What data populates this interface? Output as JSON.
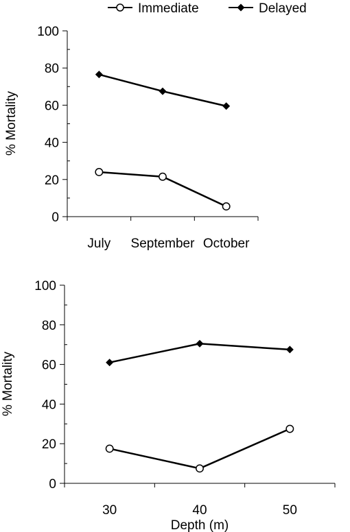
{
  "legend": {
    "items": [
      {
        "label": "Immediate",
        "marker": "open-circle-icon"
      },
      {
        "label": "Delayed",
        "marker": "filled-diamond-icon"
      }
    ]
  },
  "chart_data": [
    {
      "type": "line",
      "title": "",
      "xlabel": "",
      "ylabel": "% Mortality",
      "categories": [
        "July",
        "September",
        "October"
      ],
      "ylim": [
        0,
        100
      ],
      "yticks": [
        0,
        20,
        40,
        60,
        80,
        100
      ],
      "grid": false,
      "legend_position": "top",
      "series": [
        {
          "name": "Immediate",
          "marker": "open-circle",
          "values": [
            24,
            21.5,
            5.5
          ]
        },
        {
          "name": "Delayed",
          "marker": "filled-diamond",
          "values": [
            76.5,
            67.5,
            59.5
          ]
        }
      ]
    },
    {
      "type": "line",
      "title": "",
      "xlabel": "Depth (m)",
      "ylabel": "% Mortality",
      "categories": [
        "30",
        "40",
        "50"
      ],
      "ylim": [
        0,
        100
      ],
      "yticks": [
        0,
        20,
        40,
        60,
        80,
        100
      ],
      "grid": false,
      "series": [
        {
          "name": "Immediate",
          "marker": "open-circle",
          "values": [
            17.5,
            7.5,
            27.5
          ]
        },
        {
          "name": "Delayed",
          "marker": "filled-diamond",
          "values": [
            61,
            70.5,
            67.5
          ]
        }
      ]
    }
  ]
}
